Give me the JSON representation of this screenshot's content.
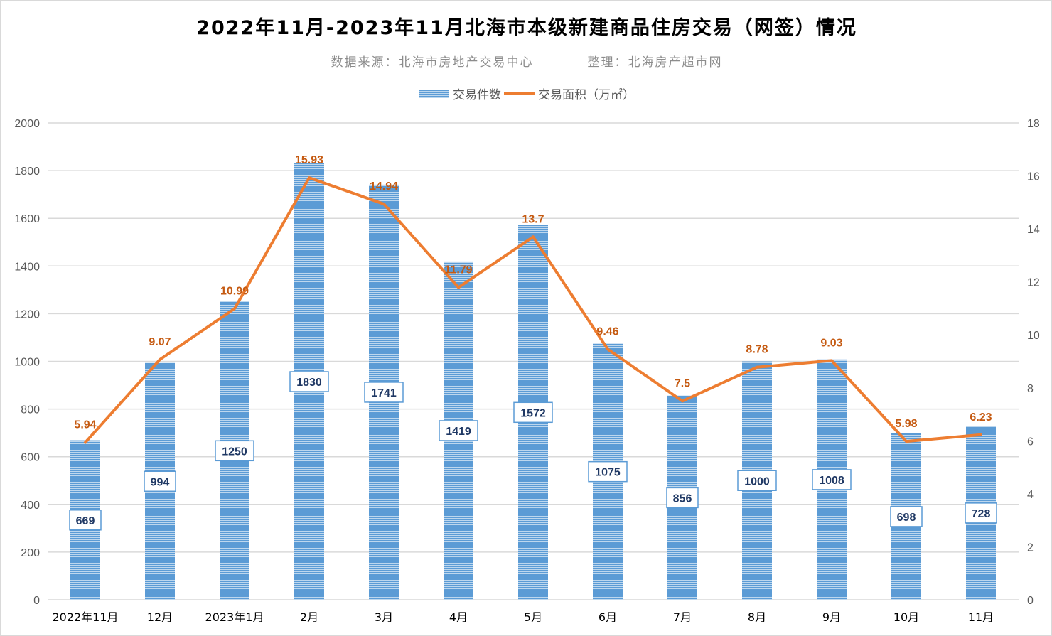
{
  "title": "2022年11月-2023年11月北海市本级新建商品住房交易（网签）情况",
  "subtitle": {
    "source": "数据来源：北海市房地产交易中心",
    "compiler": "整理：北海房产超市网"
  },
  "chart_data": {
    "type": "bar+line",
    "categories": [
      "2022年11月",
      "12月",
      "2023年1月",
      "2月",
      "3月",
      "4月",
      "5月",
      "6月",
      "7月",
      "8月",
      "9月",
      "10月",
      "11月"
    ],
    "series": [
      {
        "name": "交易件数",
        "type": "bar",
        "axis": "left",
        "color": "#5b9bd5",
        "values": [
          669,
          994,
          1250,
          1830,
          1741,
          1419,
          1572,
          1075,
          856,
          1000,
          1008,
          698,
          728
        ]
      },
      {
        "name": "交易面积（万㎡）",
        "type": "line",
        "axis": "right",
        "color": "#ed7d31",
        "values": [
          5.94,
          9.07,
          10.99,
          15.93,
          14.94,
          11.79,
          13.7,
          9.46,
          7.5,
          8.78,
          9.03,
          5.98,
          6.23
        ]
      }
    ],
    "yleft": {
      "lim": [
        0,
        2000
      ],
      "ticks": [
        0,
        200,
        400,
        600,
        800,
        1000,
        1200,
        1400,
        1600,
        1800,
        2000
      ]
    },
    "yright": {
      "lim": [
        0,
        18
      ],
      "ticks": [
        0,
        2,
        4,
        6,
        8,
        10,
        12,
        14,
        16,
        18
      ]
    },
    "grid": true,
    "legend": "top"
  }
}
